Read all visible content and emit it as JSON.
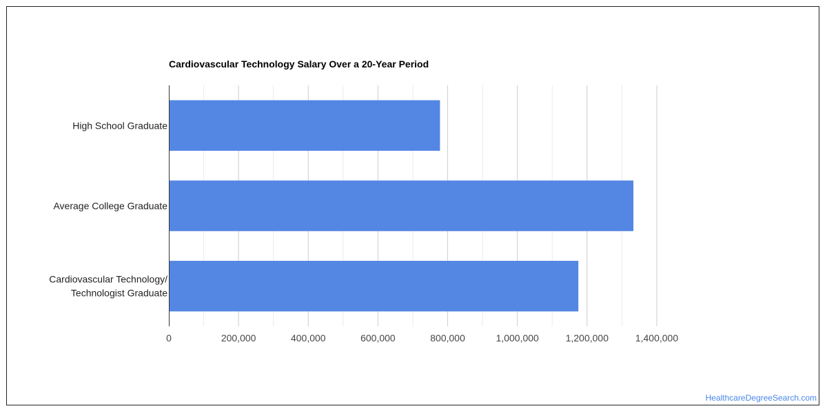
{
  "chart_data": {
    "type": "bar",
    "orientation": "horizontal",
    "title": "Cardiovascular Technology Salary Over a 20-Year Period",
    "categories": [
      [
        "High School Graduate"
      ],
      [
        "Average College Graduate"
      ],
      [
        "Cardiovascular Technology/",
        "Technologist Graduate"
      ]
    ],
    "values": [
      778000,
      1333000,
      1175000
    ],
    "xlim": [
      0,
      1400000
    ],
    "ticks": [
      0,
      200000,
      400000,
      600000,
      800000,
      1000000,
      1200000,
      1400000
    ],
    "tick_labels": [
      "0",
      "200,000",
      "400,000",
      "600,000",
      "800,000",
      "1,000,000",
      "1,200,000",
      "1,400,000"
    ],
    "grid": true,
    "bar_color": "#5486e3"
  },
  "watermark": "HealthcareDegreeSearch.com"
}
